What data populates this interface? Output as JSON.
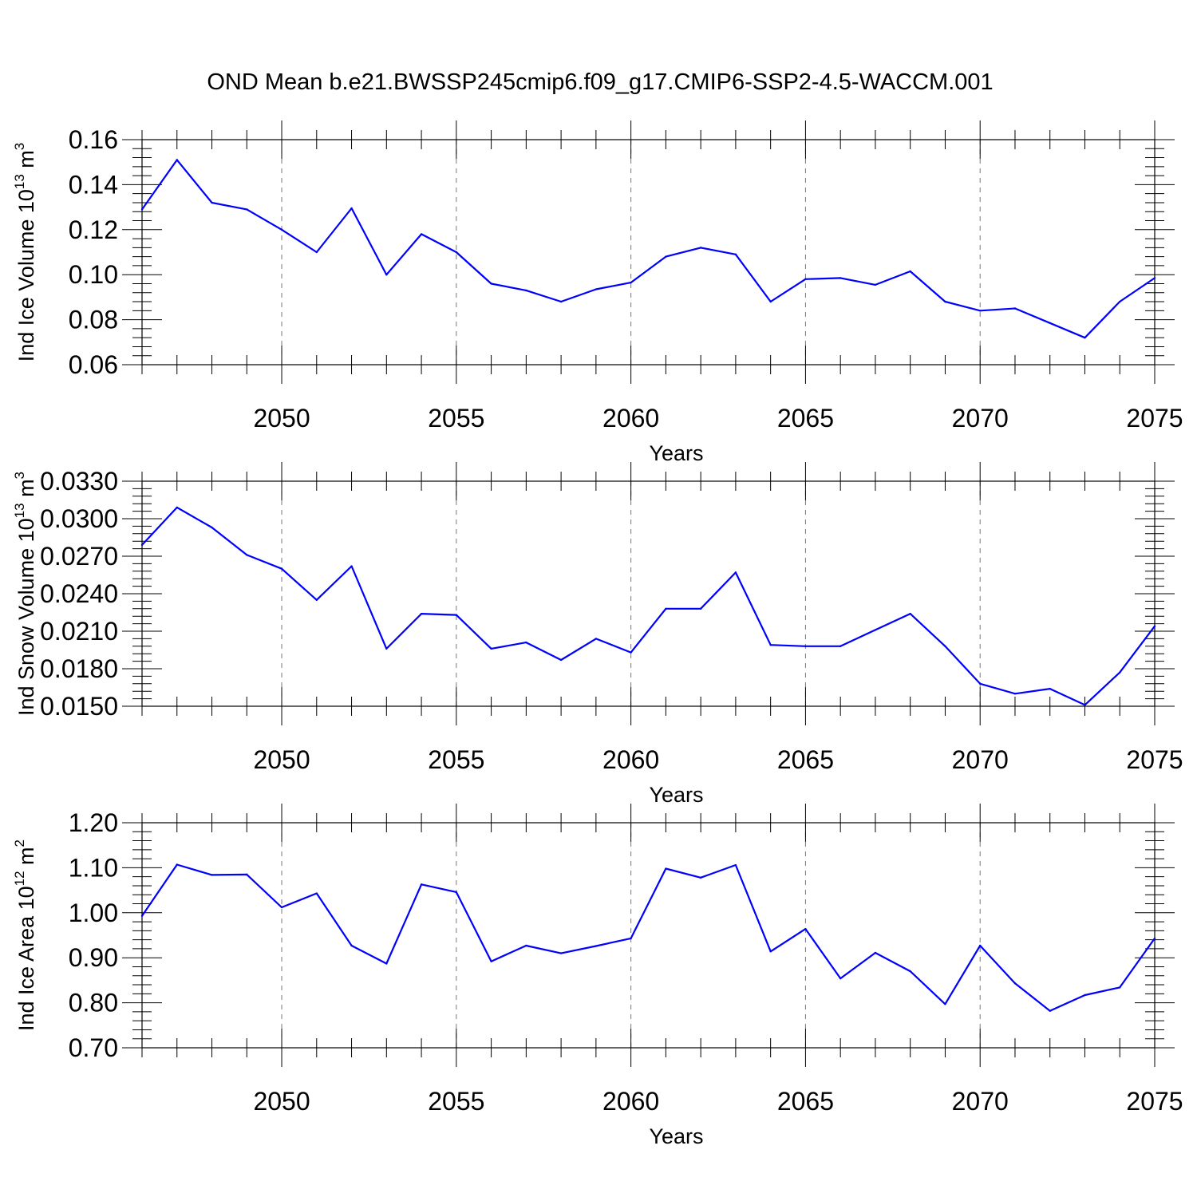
{
  "chart_data": {
    "title": "OND Mean b.e21.BWSSP245cmip6.f09_g17.CMIP6-SSP2-4.5-WACCM.001",
    "type": "line",
    "line_color": "#0000ff",
    "grid": "dashed vertical lines at labeled x ticks",
    "panels": [
      {
        "ylabel_main": "Ind Ice Volume 10",
        "ylabel_exp": "13",
        "ylabel_unit": " m",
        "ylabel_unit_exp": "3",
        "xlabel": "Years",
        "xlim": [
          2046,
          2075
        ],
        "ylim": [
          0.06,
          0.16
        ],
        "yticks": [
          0.06,
          0.08,
          0.1,
          0.12,
          0.14,
          0.16
        ],
        "ytick_labels": [
          "0.06",
          "0.08",
          "0.10",
          "0.12",
          "0.14",
          "0.16"
        ],
        "xticks": [
          2050,
          2055,
          2060,
          2065,
          2070,
          2075
        ],
        "xtick_labels": [
          "2050",
          "2055",
          "2060",
          "2065",
          "2070",
          "2075"
        ],
        "x": [
          2046,
          2047,
          2048,
          2049,
          2050,
          2051,
          2052,
          2053,
          2054,
          2055,
          2056,
          2057,
          2058,
          2059,
          2060,
          2061,
          2062,
          2063,
          2064,
          2065,
          2066,
          2067,
          2068,
          2069,
          2070,
          2071,
          2072,
          2073,
          2074,
          2075
        ],
        "values": [
          0.129,
          0.151,
          0.132,
          0.129,
          0.12,
          0.11,
          0.1295,
          0.1,
          0.118,
          0.11,
          0.096,
          0.093,
          0.088,
          0.0935,
          0.0965,
          0.108,
          0.112,
          0.109,
          0.088,
          0.098,
          0.0985,
          0.0955,
          0.1015,
          0.088,
          0.084,
          0.085,
          0.0785,
          0.072,
          0.088,
          0.0985
        ]
      },
      {
        "ylabel_main": "Ind Snow Volume 10",
        "ylabel_exp": "13",
        "ylabel_unit": " m",
        "ylabel_unit_exp": "3",
        "xlabel": "Years",
        "xlim": [
          2046,
          2075
        ],
        "ylim": [
          0.015,
          0.033
        ],
        "yticks": [
          0.015,
          0.018,
          0.021,
          0.024,
          0.027,
          0.03,
          0.033
        ],
        "ytick_labels": [
          "0.0150",
          "0.0180",
          "0.0210",
          "0.0240",
          "0.0270",
          "0.0300",
          "0.0330"
        ],
        "xticks": [
          2050,
          2055,
          2060,
          2065,
          2070,
          2075
        ],
        "xtick_labels": [
          "2050",
          "2055",
          "2060",
          "2065",
          "2070",
          "2075"
        ],
        "x": [
          2046,
          2047,
          2048,
          2049,
          2050,
          2051,
          2052,
          2053,
          2054,
          2055,
          2056,
          2057,
          2058,
          2059,
          2060,
          2061,
          2062,
          2063,
          2064,
          2065,
          2066,
          2067,
          2068,
          2069,
          2070,
          2071,
          2072,
          2073,
          2074,
          2075
        ],
        "values": [
          0.0279,
          0.0309,
          0.0293,
          0.0271,
          0.026,
          0.0235,
          0.0262,
          0.0196,
          0.0224,
          0.0223,
          0.0196,
          0.0201,
          0.0187,
          0.0204,
          0.0193,
          0.0228,
          0.0228,
          0.0257,
          0.0199,
          0.0198,
          0.0198,
          0.0211,
          0.0224,
          0.0198,
          0.0168,
          0.016,
          0.0164,
          0.0151,
          0.0177,
          0.0214
        ]
      },
      {
        "ylabel_main": "Ind Ice Area 10",
        "ylabel_exp": "12",
        "ylabel_unit": " m",
        "ylabel_unit_exp": "2",
        "xlabel": "Years",
        "xlim": [
          2046,
          2075
        ],
        "ylim": [
          0.7,
          1.2
        ],
        "yticks": [
          0.7,
          0.8,
          0.9,
          1.0,
          1.1,
          1.2
        ],
        "ytick_labels": [
          "0.70",
          "0.80",
          "0.90",
          "1.00",
          "1.10",
          "1.20"
        ],
        "xticks": [
          2050,
          2055,
          2060,
          2065,
          2070,
          2075
        ],
        "xtick_labels": [
          "2050",
          "2055",
          "2060",
          "2065",
          "2070",
          "2075"
        ],
        "x": [
          2046,
          2047,
          2048,
          2049,
          2050,
          2051,
          2052,
          2053,
          2054,
          2055,
          2056,
          2057,
          2058,
          2059,
          2060,
          2061,
          2062,
          2063,
          2064,
          2065,
          2066,
          2067,
          2068,
          2069,
          2070,
          2071,
          2072,
          2073,
          2074,
          2075
        ],
        "values": [
          0.993,
          1.107,
          1.084,
          1.085,
          1.012,
          1.043,
          0.927,
          0.887,
          1.063,
          1.046,
          0.892,
          0.927,
          0.91,
          0.926,
          0.943,
          1.098,
          1.078,
          1.106,
          0.914,
          0.964,
          0.854,
          0.911,
          0.87,
          0.797,
          0.927,
          0.843,
          0.782,
          0.817,
          0.834,
          0.943
        ]
      }
    ]
  }
}
